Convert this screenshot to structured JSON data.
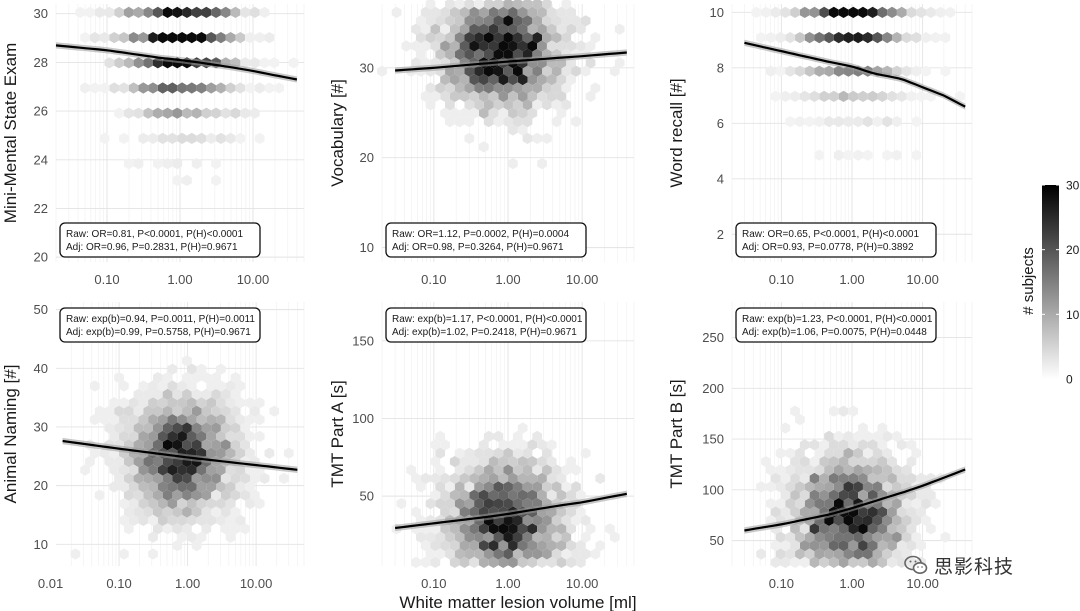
{
  "figure": {
    "x_axis_title": "White matter lesion volume [ml]",
    "legend": {
      "title": "# subjects",
      "ticks": [
        0,
        10,
        20,
        30
      ],
      "min": 0,
      "max": 30,
      "color_low": "#ffffff",
      "color_high": "#000000"
    },
    "watermark": "思影科技"
  },
  "chart_data": [
    {
      "type": "scatter",
      "subtype": "hexbin-with-regression",
      "ylabel": "Mini-Mental State Exam",
      "x_scale": "log10",
      "xlim": [
        0.02,
        50
      ],
      "x_ticks": [
        "0.10",
        "1.00",
        "10.00"
      ],
      "ylim": [
        19.8,
        30.4
      ],
      "y_ticks": [
        20,
        22,
        24,
        26,
        28,
        30
      ],
      "y_discrete": [
        21,
        22,
        23,
        24,
        25,
        26,
        27,
        28,
        29,
        30
      ],
      "cloud_center_x": 1.0,
      "cloud_y_mode": 29,
      "fit_x": [
        0.02,
        0.1,
        0.5,
        1,
        2,
        5,
        10,
        20,
        40
      ],
      "fit_y": [
        28.7,
        28.5,
        28.2,
        28.1,
        27.98,
        27.8,
        27.65,
        27.47,
        27.3
      ],
      "stats": [
        "Raw: OR=0.81, P<0.0001, P(H)<0.0001",
        "Adj:   OR=0.96, P=0.2831, P(H)=0.9671"
      ],
      "stats_position": "bottom"
    },
    {
      "type": "scatter",
      "subtype": "hexbin-with-regression",
      "ylabel": "Vocabulary [#]",
      "x_scale": "log10",
      "xlim": [
        0.02,
        50
      ],
      "x_ticks": [
        "0.10",
        "1.00",
        "10.00"
      ],
      "ylim": [
        8.4,
        37.1
      ],
      "y_ticks": [
        10,
        20,
        30
      ],
      "cloud_center_x": 0.8,
      "cloud_y_mode": 32,
      "fit_x": [
        0.03,
        0.1,
        1,
        10,
        40
      ],
      "fit_y": [
        29.7,
        30.0,
        30.7,
        31.3,
        31.7
      ],
      "stats": [
        "Raw: OR=1.12, P=0.0002, P(H)=0.0004",
        "Adj:   OR=0.98, P=0.3264, P(H)=0.9671"
      ],
      "stats_position": "bottom"
    },
    {
      "type": "scatter",
      "subtype": "hexbin-with-regression",
      "ylabel": "Word recall [#]",
      "x_scale": "log10",
      "xlim": [
        0.02,
        50
      ],
      "x_ticks": [
        "0.10",
        "1.00",
        "10.00"
      ],
      "ylim": [
        1.0,
        10.3
      ],
      "y_ticks": [
        2,
        4,
        6,
        8,
        10
      ],
      "y_discrete": [
        3,
        4,
        5,
        6,
        7,
        8,
        9,
        10
      ],
      "cloud_center_x": 1.0,
      "cloud_y_mode": 10,
      "fit_x": [
        0.03,
        0.1,
        0.5,
        1,
        2,
        5,
        10,
        20,
        40
      ],
      "fit_y": [
        8.9,
        8.6,
        8.2,
        8.05,
        7.8,
        7.6,
        7.3,
        7.0,
        6.6
      ],
      "stats": [
        "Raw: OR=0.65, P<0.0001, P(H)<0.0001",
        "Adj:   OR=0.93, P=0.0778, P(H)=0.3892"
      ],
      "stats_position": "bottom"
    },
    {
      "type": "scatter",
      "subtype": "hexbin-with-regression",
      "ylabel": "Animal Naming [#]",
      "x_scale": "log10",
      "xlim": [
        0.012,
        50
      ],
      "x_ticks": [
        "0.01",
        "0.10",
        "1.00",
        "10.00"
      ],
      "ylim": [
        6.3,
        51.3
      ],
      "y_ticks": [
        10,
        20,
        30,
        40,
        50
      ],
      "cloud_center_x": 0.8,
      "cloud_y_mode": 25,
      "fit_x": [
        0.015,
        0.1,
        1,
        10,
        40
      ],
      "fit_y": [
        27.6,
        26.3,
        24.8,
        23.5,
        22.7
      ],
      "stats": [
        "Raw: exp(b)=0.94, P=0.0011, P(H)=0.0011",
        "Adj:   exp(b)=0.99, P=0.5758, P(H)=0.9671"
      ],
      "stats_position": "top"
    },
    {
      "type": "scatter",
      "subtype": "hexbin-with-regression",
      "ylabel": "TMT Part A [s]",
      "x_scale": "log10",
      "xlim": [
        0.02,
        50
      ],
      "x_ticks": [
        "0.10",
        "1.00",
        "10.00"
      ],
      "ylim": [
        5,
        175
      ],
      "y_ticks": [
        50,
        100,
        150
      ],
      "cloud_center_x": 0.9,
      "cloud_y_mode": 35,
      "fit_x": [
        0.03,
        0.1,
        0.5,
        1,
        5,
        10,
        40
      ],
      "fit_y": [
        29.5,
        32.5,
        36.5,
        38.5,
        44,
        46,
        51.5
      ],
      "stats": [
        "Raw: exp(b)=1.17, P<0.0001, P(H)<0.0001",
        "Adj:   exp(b)=1.02, P=0.2418, P(H)=0.9671"
      ],
      "stats_position": "top"
    },
    {
      "type": "scatter",
      "subtype": "hexbin-with-regression",
      "ylabel": "TMT Part B [s]",
      "x_scale": "log10",
      "xlim": [
        0.02,
        50
      ],
      "x_ticks": [
        "0.10",
        "1.00",
        "10.00"
      ],
      "ylim": [
        25,
        285
      ],
      "y_ticks": [
        50,
        100,
        150,
        200,
        250
      ],
      "cloud_center_x": 0.9,
      "cloud_y_mode": 75,
      "fit_x": [
        0.03,
        0.1,
        0.5,
        1,
        5,
        10,
        40
      ],
      "fit_y": [
        60,
        66,
        76,
        82,
        97,
        104,
        120
      ],
      "stats": [
        "Raw: exp(b)=1.23, P<0.0001, P(H)<0.0001",
        "Adj:   exp(b)=1.06, P=0.0075, P(H)=0.0448"
      ],
      "stats_position": "top"
    }
  ]
}
